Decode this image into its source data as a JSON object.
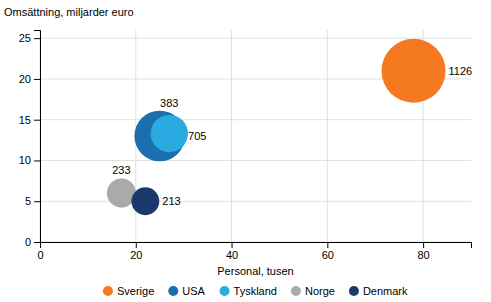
{
  "chart_data": {
    "type": "scatter",
    "xlabel": "Personal, tusen",
    "ylabel": "Omsättning, miljarder euro",
    "series": [
      {
        "name": "Sverige",
        "color": "#F47920",
        "x": [
          78
        ],
        "values": [
          21
        ],
        "size": [
          1126
        ]
      },
      {
        "name": "USA",
        "color": "#1B6FAE",
        "x": [
          25
        ],
        "values": [
          13
        ],
        "size": [
          705
        ]
      },
      {
        "name": "Tyskland",
        "color": "#29ABE2",
        "x": [
          27
        ],
        "values": [
          13.3
        ],
        "size": [
          383
        ]
      },
      {
        "name": "Norge",
        "color": "#AAAAAA",
        "x": [
          17
        ],
        "values": [
          6
        ],
        "size": [
          233
        ]
      },
      {
        "name": "Denmark",
        "color": "#1A3A6B",
        "x": [
          22
        ],
        "values": [
          5
        ],
        "size": [
          213
        ]
      }
    ],
    "xlim": [
      0,
      90
    ],
    "ylim": [
      0,
      26
    ],
    "xticks": [
      0,
      20,
      40,
      60,
      80
    ],
    "yticks": [
      0,
      5,
      10,
      15,
      20,
      25
    ],
    "grid": true,
    "legend": "bottom",
    "data_labels": true
  }
}
